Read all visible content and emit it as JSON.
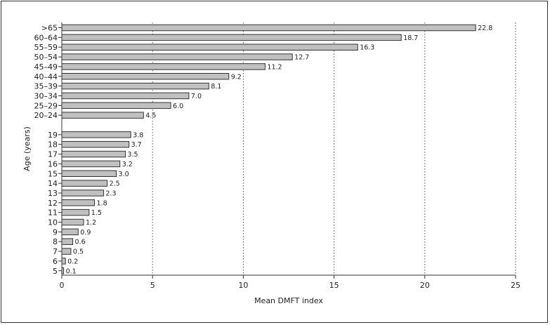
{
  "chart_data": {
    "type": "bar",
    "orientation": "horizontal",
    "xlabel": "Mean DMFT index",
    "ylabel": "Age (years)",
    "xlim": [
      0,
      25
    ],
    "xticks": [
      "0",
      "5",
      "10",
      "15",
      "20",
      "25"
    ],
    "grid": "vertical dotted",
    "groups": [
      {
        "categories": [
          ">65",
          "60–64",
          "55–59",
          "50–54",
          "45–49",
          "40–44",
          "35–39",
          "30–34",
          "25–29",
          "20–24"
        ],
        "values": [
          22.8,
          18.7,
          16.3,
          12.7,
          11.2,
          9.2,
          8.1,
          7.0,
          6.0,
          4.5
        ],
        "value_labels": [
          "22.8",
          "18.7",
          "16.3",
          "12.7",
          "11.2",
          "9.2",
          "8.1",
          "7.0",
          "6.0",
          "4.5"
        ]
      },
      {
        "categories": [
          "19",
          "18",
          "17",
          "16",
          "15",
          "14",
          "13",
          "12",
          "11",
          "10",
          "9",
          "8",
          "7",
          "6",
          "5"
        ],
        "values": [
          3.8,
          3.7,
          3.5,
          3.2,
          3.0,
          2.5,
          2.3,
          1.8,
          1.5,
          1.2,
          0.9,
          0.6,
          0.5,
          0.2,
          0.1
        ],
        "value_labels": [
          "3.8",
          "3.7",
          "3.5",
          "3.2",
          "3.0",
          "2.5",
          "2.3",
          "1.8",
          "1.5",
          "1.2",
          "0.9",
          "0.6",
          "0.5",
          "0.2",
          "0.1"
        ]
      }
    ],
    "colors": {
      "bar_fill": "#c0c0c0",
      "bar_stroke": "#333333",
      "grid": "#555555"
    }
  }
}
